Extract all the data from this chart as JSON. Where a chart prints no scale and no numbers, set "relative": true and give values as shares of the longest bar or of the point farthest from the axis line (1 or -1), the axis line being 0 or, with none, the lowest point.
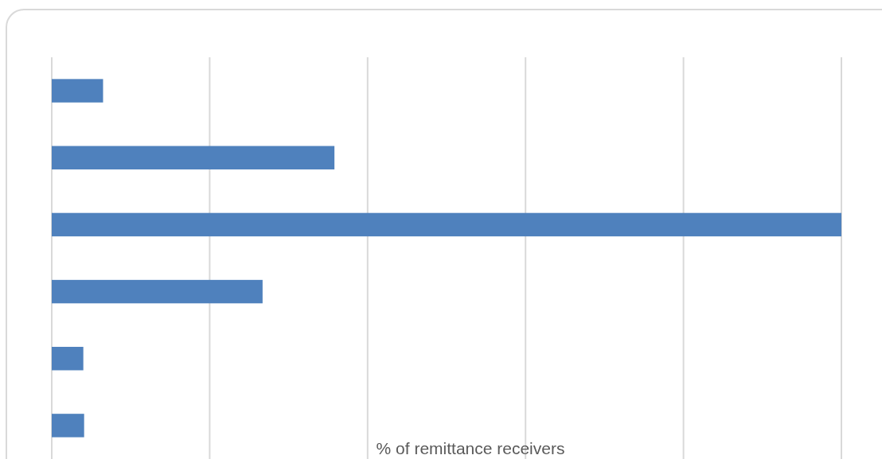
{
  "chart_data": {
    "type": "bar",
    "orientation": "horizontal",
    "relative": true,
    "xlabel": "% of remittance receivers",
    "categories": [
      null,
      null,
      null,
      null,
      null,
      null
    ],
    "values": [
      0.065,
      0.358,
      1,
      0.267,
      0.04,
      0.041
    ],
    "color": "#4f81bd",
    "grid": "x"
  }
}
